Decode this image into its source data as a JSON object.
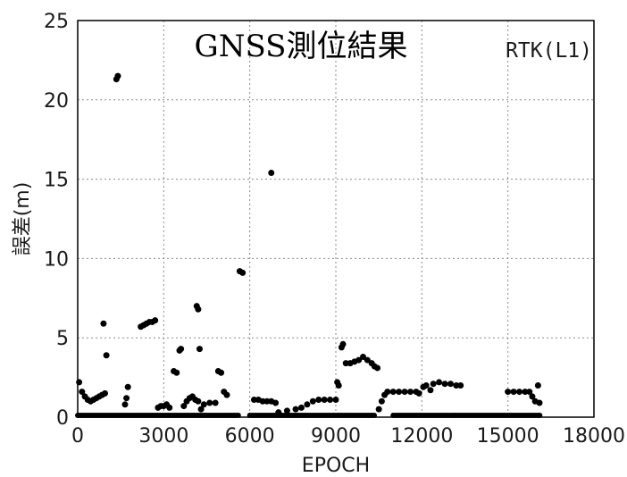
{
  "chart_data": {
    "type": "scatter",
    "title": "GNSS測位結果",
    "annotation": "RTK(L1)",
    "xlabel": "EPOCH",
    "ylabel": "誤差(m)",
    "xlim": [
      0,
      18000
    ],
    "ylim": [
      0,
      25
    ],
    "xticks": [
      0,
      3000,
      6000,
      9000,
      12000,
      15000,
      18000
    ],
    "yticks": [
      0,
      5,
      10,
      15,
      20,
      25
    ],
    "grid": true,
    "marker_color": "#000000",
    "points": [
      [
        50,
        2.2
      ],
      [
        150,
        1.6
      ],
      [
        250,
        1.3
      ],
      [
        350,
        1.1
      ],
      [
        450,
        1.0
      ],
      [
        550,
        1.1
      ],
      [
        650,
        1.2
      ],
      [
        750,
        1.3
      ],
      [
        850,
        1.4
      ],
      [
        950,
        1.5
      ],
      [
        900,
        5.9
      ],
      [
        1000,
        3.9
      ],
      [
        1350,
        21.3
      ],
      [
        1400,
        21.5
      ],
      [
        1650,
        0.8
      ],
      [
        1700,
        1.2
      ],
      [
        1750,
        1.9
      ],
      [
        2200,
        5.7
      ],
      [
        2300,
        5.8
      ],
      [
        2400,
        5.9
      ],
      [
        2500,
        6.0
      ],
      [
        2600,
        6.0
      ],
      [
        2700,
        6.1
      ],
      [
        2800,
        0.6
      ],
      [
        2900,
        0.7
      ],
      [
        3000,
        0.7
      ],
      [
        3100,
        0.8
      ],
      [
        3200,
        0.6
      ],
      [
        3350,
        2.9
      ],
      [
        3450,
        2.8
      ],
      [
        3550,
        4.2
      ],
      [
        3600,
        4.3
      ],
      [
        3700,
        0.7
      ],
      [
        3800,
        1.0
      ],
      [
        3900,
        1.2
      ],
      [
        4000,
        1.3
      ],
      [
        4100,
        1.1
      ],
      [
        4200,
        1.0
      ],
      [
        4150,
        7.0
      ],
      [
        4200,
        6.8
      ],
      [
        4250,
        4.3
      ],
      [
        4300,
        0.5
      ],
      [
        4400,
        0.8
      ],
      [
        4600,
        0.9
      ],
      [
        4800,
        0.9
      ],
      [
        4900,
        2.9
      ],
      [
        5000,
        2.8
      ],
      [
        5100,
        1.6
      ],
      [
        5200,
        1.4
      ],
      [
        5650,
        9.2
      ],
      [
        5750,
        9.1
      ],
      [
        6150,
        1.1
      ],
      [
        6300,
        1.1
      ],
      [
        6450,
        1.0
      ],
      [
        6600,
        1.0
      ],
      [
        6750,
        1.0
      ],
      [
        6900,
        0.9
      ],
      [
        6750,
        15.4
      ],
      [
        7000,
        0.3
      ],
      [
        7300,
        0.4
      ],
      [
        7600,
        0.5
      ],
      [
        7800,
        0.6
      ],
      [
        8000,
        0.8
      ],
      [
        8200,
        1.0
      ],
      [
        8400,
        1.1
      ],
      [
        8600,
        1.1
      ],
      [
        8800,
        1.1
      ],
      [
        9000,
        1.1
      ],
      [
        9050,
        2.2
      ],
      [
        9100,
        2.0
      ],
      [
        9200,
        4.4
      ],
      [
        9250,
        4.6
      ],
      [
        9350,
        3.4
      ],
      [
        9500,
        3.4
      ],
      [
        9650,
        3.5
      ],
      [
        9800,
        3.6
      ],
      [
        9950,
        3.8
      ],
      [
        10100,
        3.6
      ],
      [
        10250,
        3.4
      ],
      [
        10350,
        3.2
      ],
      [
        10450,
        3.1
      ],
      [
        10500,
        0.5
      ],
      [
        10600,
        1.0
      ],
      [
        10700,
        1.4
      ],
      [
        10800,
        1.6
      ],
      [
        11000,
        1.6
      ],
      [
        11200,
        1.6
      ],
      [
        11400,
        1.6
      ],
      [
        11600,
        1.6
      ],
      [
        11800,
        1.6
      ],
      [
        11900,
        1.5
      ],
      [
        12050,
        1.9
      ],
      [
        12150,
        2.0
      ],
      [
        12300,
        1.7
      ],
      [
        12400,
        2.1
      ],
      [
        12600,
        2.2
      ],
      [
        12800,
        2.1
      ],
      [
        13000,
        2.1
      ],
      [
        13200,
        2.0
      ],
      [
        13350,
        2.0
      ],
      [
        15000,
        1.6
      ],
      [
        15200,
        1.6
      ],
      [
        15400,
        1.6
      ],
      [
        15600,
        1.6
      ],
      [
        15750,
        1.6
      ],
      [
        15850,
        1.3
      ],
      [
        15950,
        1.0
      ],
      [
        16050,
        2.0
      ],
      [
        16100,
        0.9
      ]
    ],
    "baseline_segments": [
      [
        0,
        5600
      ],
      [
        6000,
        10400
      ],
      [
        11000,
        16150
      ]
    ]
  }
}
